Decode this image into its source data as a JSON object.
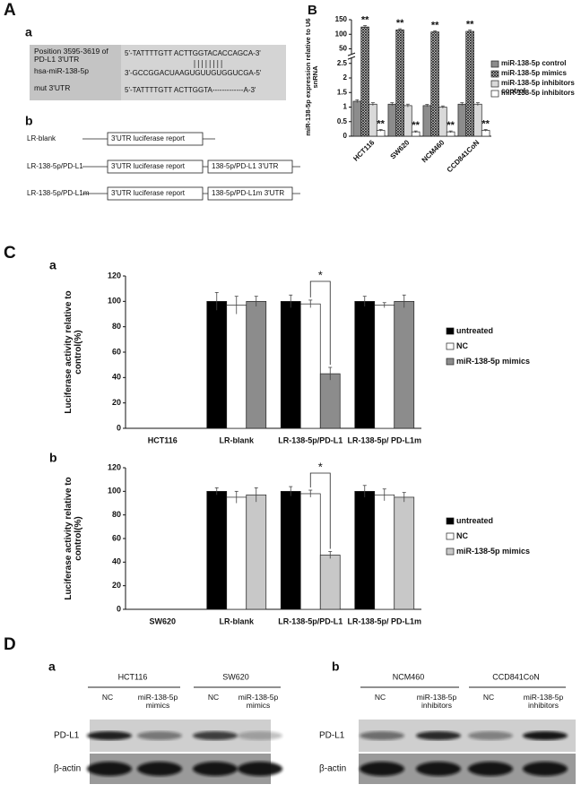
{
  "panel_A": {
    "label": "A",
    "sub_a": "a",
    "sub_b": "b",
    "rows": [
      {
        "label": "Position 3595-3619 of PD-L1 3'UTR",
        "sequence": "5'-TATTTTGTT ACTTGGTACACCAGCA-3'"
      },
      {
        "label": "hsa-miR-138-5p",
        "sequence": "3'-GCCGGACUAAGUGUUGUGGUCGA-5'"
      },
      {
        "label": "mut 3'UTR",
        "sequence": "5'-TATTTTGTT ACTTGGTA-------------A-3'"
      }
    ],
    "constructs": [
      {
        "name": "LR-blank",
        "boxes": [
          "3'UTR luciferase report"
        ]
      },
      {
        "name": "LR-138-5p/PD-L1",
        "boxes": [
          "3'UTR luciferase report",
          "138-5p/PD-L1 3'UTR"
        ]
      },
      {
        "name": "LR-138-5p/PD-L1m",
        "boxes": [
          "3'UTR luciferase report",
          "138-5p/PD-L1m 3'UTR"
        ]
      }
    ]
  },
  "panel_C_label": "C",
  "chart_data": [
    {
      "type": "bar",
      "label": "B",
      "y_label": "miR-138-5p expression relative to U6 snRNA",
      "categories": [
        "HCT116",
        "SW620",
        "NCM460",
        "CCD841CoN"
      ],
      "ylim": [
        0,
        150
      ],
      "yticks": [
        0,
        0.5,
        1,
        1.5,
        2,
        2.5,
        50,
        100,
        150
      ],
      "axis_break": true,
      "rotated_labels": true,
      "legend": "right",
      "series": [
        {
          "name": "miR-138-5p control",
          "color": "#8c8c8c",
          "values": [
            1.2,
            1.1,
            1.05,
            1.1
          ],
          "errors": [
            0.05,
            0.05,
            0.04,
            0.05
          ]
        },
        {
          "name": "miR-138-5p mimics",
          "color": "#333333",
          "pattern": "crosshatch",
          "values": [
            125,
            115,
            108,
            110
          ],
          "errors": [
            5,
            4,
            4,
            5
          ],
          "annotations": [
            "**",
            "**",
            "**",
            "**"
          ]
        },
        {
          "name": "miR-138-5p inhibitors control",
          "color": "#d9d9d9",
          "values": [
            1.1,
            1.05,
            1.0,
            1.1
          ],
          "errors": [
            0.05,
            0.05,
            0.04,
            0.05
          ]
        },
        {
          "name": "miR-138-5p inhibitors",
          "color": "#ffffff",
          "values": [
            0.2,
            0.15,
            0.15,
            0.2
          ],
          "errors": [
            0.03,
            0.03,
            0.03,
            0.03
          ],
          "annotations": [
            "**",
            "**",
            "**",
            "**"
          ]
        }
      ]
    },
    {
      "type": "bar",
      "label": "a",
      "y_label": "Luciferase activity relative to control(%)",
      "categories": [
        "HCT116",
        "LR-blank",
        "LR-138-5p/PD-L1",
        "LR-138-5p/ PD-L1m"
      ],
      "ylim": [
        0,
        120
      ],
      "yticks": [
        0,
        20,
        40,
        60,
        80,
        100,
        120
      ],
      "legend": "right",
      "bracket_annotations": true,
      "series": [
        {
          "name": "untreated",
          "color": "#000000",
          "values": [
            null,
            100,
            100,
            100
          ],
          "errors": [
            null,
            7,
            5,
            4
          ]
        },
        {
          "name": "NC",
          "color": "#ffffff",
          "values": [
            null,
            97,
            98,
            97
          ],
          "errors": [
            null,
            7,
            3,
            2
          ]
        },
        {
          "name": "miR-138-5p mimics",
          "color": "#8c8c8c",
          "values": [
            null,
            100,
            43,
            100
          ],
          "errors": [
            null,
            4,
            5,
            5
          ],
          "annotations": [
            null,
            null,
            "*",
            null
          ]
        }
      ]
    },
    {
      "type": "bar",
      "label": "b",
      "y_label": "Luciferase activity relative to control(%)",
      "categories": [
        "SW620",
        "LR-blank",
        "LR-138-5p/PD-L1",
        "LR-138-5p/ PD-L1m"
      ],
      "ylim": [
        0,
        120
      ],
      "yticks": [
        0,
        20,
        40,
        60,
        80,
        100,
        120
      ],
      "legend": "right",
      "bracket_annotations": true,
      "series": [
        {
          "name": "untreated",
          "color": "#000000",
          "values": [
            null,
            100,
            100,
            100
          ],
          "errors": [
            null,
            3,
            4,
            5
          ]
        },
        {
          "name": "NC",
          "color": "#ffffff",
          "values": [
            null,
            95,
            98,
            97
          ],
          "errors": [
            null,
            5,
            3,
            5
          ]
        },
        {
          "name": "miR-138-5p mimics",
          "color": "#c8c8c8",
          "values": [
            null,
            97,
            46,
            95
          ],
          "errors": [
            null,
            6,
            3,
            4
          ],
          "annotations": [
            null,
            null,
            "*",
            null
          ]
        }
      ]
    }
  ],
  "panel_D": {
    "label": "D",
    "blots": [
      {
        "label": "a",
        "rows": [
          "PD-L1",
          "β-actin"
        ],
        "groups": [
          {
            "name": "HCT116",
            "lanes": [
              "NC",
              "miR-138-5p mimics"
            ]
          },
          {
            "name": "SW620",
            "lanes": [
              "NC",
              "miR-138-5p mimics"
            ]
          }
        ]
      },
      {
        "label": "b",
        "rows": [
          "PD-L1",
          "β-actin"
        ],
        "groups": [
          {
            "name": "NCM460",
            "lanes": [
              "NC",
              "miR-138-5p inhibitors"
            ]
          },
          {
            "name": "CCD841CoN",
            "lanes": [
              "NC",
              "miR-138-5p inhibitors"
            ]
          }
        ]
      }
    ]
  }
}
